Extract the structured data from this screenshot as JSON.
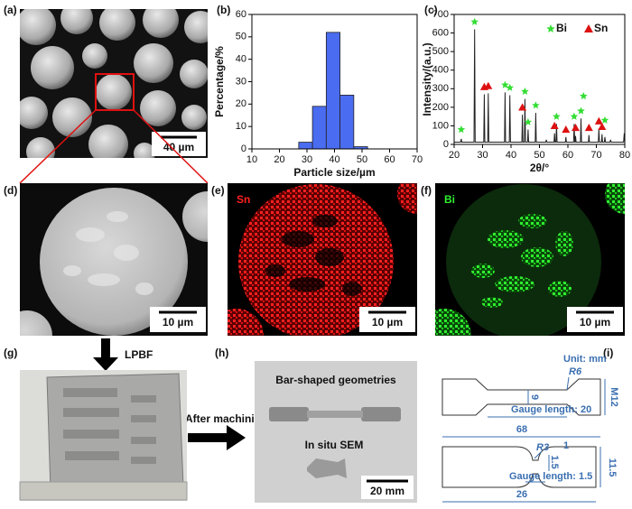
{
  "panel_labels": [
    "(a)",
    "(b)",
    "(c)",
    "(d)",
    "(e)",
    "(f)",
    "(g)",
    "(h)",
    "(i)"
  ],
  "chart_data": [
    {
      "type": "histogram",
      "bins": [
        27,
        32,
        37,
        42,
        47,
        52
      ],
      "values": [
        3,
        19,
        52,
        24,
        1
      ],
      "color": "#4a6cf0",
      "xlim": [
        10,
        70
      ],
      "xticks": [
        10,
        20,
        30,
        40,
        50,
        60,
        70
      ],
      "ylim": [
        0,
        60
      ],
      "yticks": [
        0,
        10,
        20,
        30,
        40,
        50,
        60
      ],
      "x_label": "Particle size/µm",
      "y_label": "Percentage/%"
    },
    {
      "type": "line",
      "color": "#222222",
      "x": [
        20,
        22.3,
        22.5,
        22.7,
        27.0,
        27.2,
        27.4,
        30.4,
        30.6,
        30.8,
        31.8,
        32.0,
        32.2,
        37.7,
        37.9,
        38.1,
        39.4,
        39.6,
        39.8,
        43.8,
        44.0,
        44.2,
        44.7,
        44.9,
        45.1,
        45.8,
        46.0,
        46.2,
        48.5,
        48.7,
        48.9,
        52.2,
        52.4,
        52.6,
        55.1,
        55.3,
        55.5,
        55.8,
        56.0,
        56.2,
        59.1,
        59.3,
        59.5,
        62.0,
        62.2,
        62.4,
        62.5,
        62.7,
        62.9,
        64.4,
        64.6,
        64.8,
        67.2,
        67.4,
        67.6,
        70.7,
        70.9,
        71.1,
        71.8,
        72.0,
        72.2,
        72.8,
        73.0,
        73.2,
        74.8,
        75.0,
        75.2,
        79.6,
        79.8,
        80
      ],
      "values": [
        12,
        12,
        30,
        12,
        12,
        620,
        12,
        12,
        270,
        12,
        12,
        275,
        12,
        12,
        280,
        12,
        12,
        265,
        12,
        12,
        160,
        12,
        12,
        245,
        12,
        12,
        80,
        12,
        12,
        170,
        12,
        12,
        25,
        12,
        12,
        60,
        12,
        12,
        110,
        12,
        12,
        40,
        12,
        12,
        110,
        12,
        12,
        45,
        12,
        12,
        140,
        12,
        12,
        50,
        12,
        12,
        85,
        12,
        12,
        55,
        12,
        12,
        40,
        12,
        12,
        25,
        12,
        12,
        60,
        12
      ],
      "markers": [
        {
          "name": "Bi",
          "color": "#33dd33",
          "marker": "star",
          "x": [
            22.5,
            27.2,
            37.9,
            39.6,
            44.9,
            46.0,
            48.7,
            56.0,
            62.2,
            64.6,
            65.5,
            73.0
          ],
          "y": [
            80,
            660,
            320,
            305,
            285,
            120,
            210,
            150,
            150,
            180,
            260,
            130
          ]
        },
        {
          "name": "Sn",
          "color": "#dd1111",
          "marker": "triangle",
          "x": [
            30.6,
            32.0,
            44.0,
            55.3,
            59.3,
            62.7,
            67.4,
            70.9,
            72.0
          ],
          "y": [
            310,
            315,
            200,
            100,
            80,
            90,
            90,
            125,
            95
          ]
        }
      ],
      "legend": "upper right",
      "xlim": [
        20,
        80
      ],
      "xticks": [
        20,
        30,
        40,
        50,
        60,
        70,
        80
      ],
      "ylim": [
        0,
        700
      ],
      "yticks": [
        0,
        100,
        200,
        300,
        400,
        500,
        600,
        700
      ],
      "x_label": "2θ/°",
      "y_label": "Intensity/(a.u.)"
    }
  ],
  "images": {
    "a_scale": "40 µm",
    "d_scale": "10 µm",
    "e_element": "Sn",
    "e_scale": "10 µm",
    "f_element": "Bi",
    "f_scale": "10 µm"
  },
  "process": {
    "lpbf": "LPBF",
    "machining": "After machining"
  },
  "photo_h": {
    "bar": "Bar-shaped geometries",
    "insitu": "In situ SEM",
    "scale": "20 mm"
  },
  "drawing": {
    "unit": "Unit: mm",
    "r6": "R6",
    "m12": "M12",
    "d9": "9",
    "gauge20": "Gauge length: 20",
    "len68": "68",
    "r3": "R3",
    "w1": "1",
    "w15": "1.5",
    "gauge15": "Gauge length: 1.5",
    "h115": "11.5",
    "len26": "26"
  }
}
